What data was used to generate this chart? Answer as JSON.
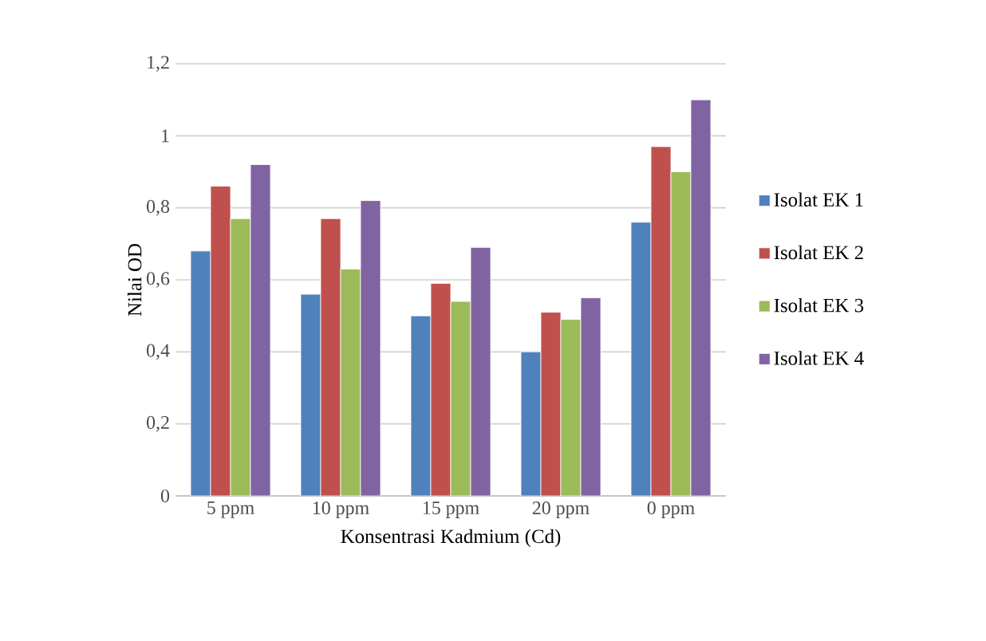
{
  "chart_data": {
    "type": "bar",
    "xlabel": "Konsentrasi Kadmium (Cd)",
    "ylabel": "Nilai OD",
    "categories": [
      "5 ppm",
      "10 ppm",
      "15 ppm",
      "20 ppm",
      "0 ppm"
    ],
    "series": [
      {
        "name": "Isolat EK 1",
        "color": "#4f81bd",
        "values": [
          0.68,
          0.56,
          0.5,
          0.4,
          0.76
        ]
      },
      {
        "name": "Isolat EK 2",
        "color": "#c0504d",
        "values": [
          0.86,
          0.77,
          0.59,
          0.51,
          0.97
        ]
      },
      {
        "name": "Isolat EK 3",
        "color": "#9bbb59",
        "values": [
          0.77,
          0.63,
          0.54,
          0.49,
          0.9
        ]
      },
      {
        "name": "Isolat EK 4",
        "color": "#8064a2",
        "values": [
          0.92,
          0.82,
          0.69,
          0.55,
          1.1
        ]
      }
    ],
    "ylim": [
      0,
      1.2
    ],
    "yticks": [
      0,
      {
        "value": 0.2,
        "label": "0,2"
      },
      {
        "value": 0.4,
        "label": "0,4"
      },
      {
        "value": 0.6,
        "label": "0,6"
      },
      {
        "value": 0.8,
        "label": "0,8"
      },
      1,
      {
        "value": 1.2,
        "label": "1,2"
      }
    ],
    "grid": "y",
    "legend": "right"
  }
}
